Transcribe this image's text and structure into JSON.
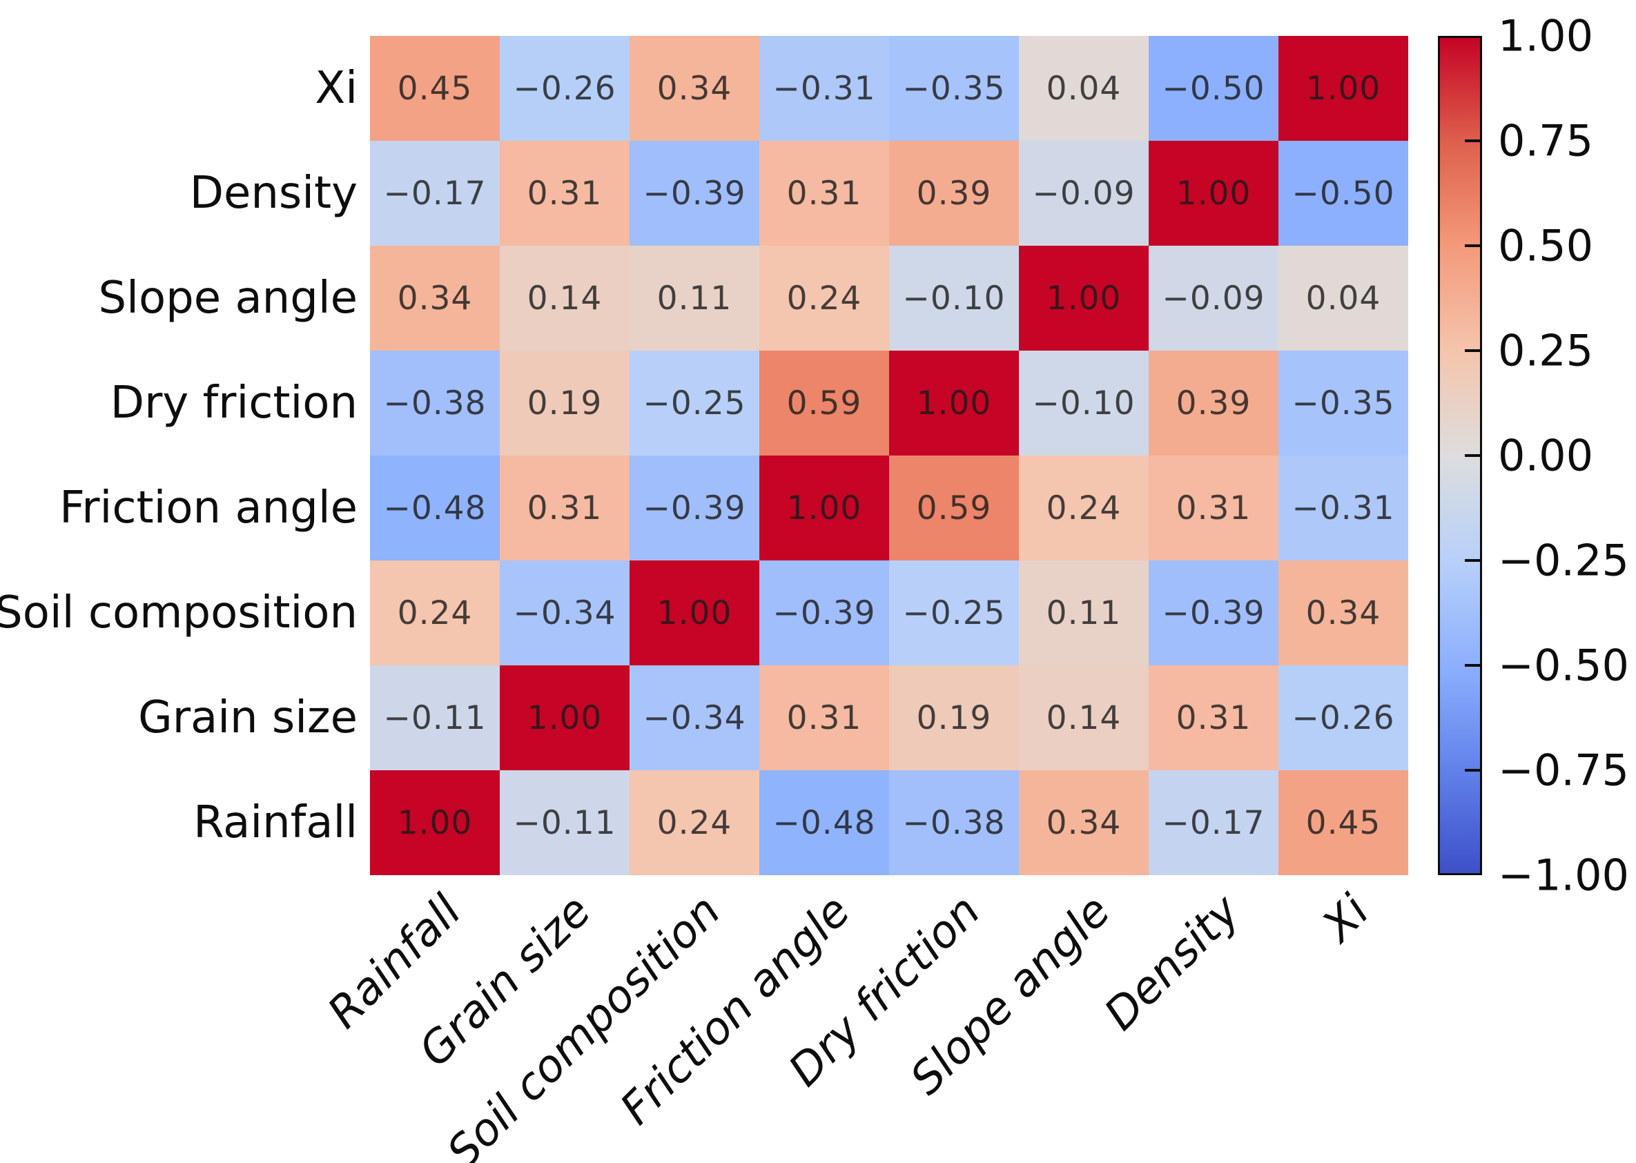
{
  "figure": {
    "background_color": "#ffffff",
    "axis_label_color": "#0d0d0d",
    "cell_value_color": "rgba(25,25,25,0.8)"
  },
  "chart_data": {
    "type": "heatmap",
    "subtype": "correlation-matrix",
    "title": "",
    "x_tick_labels": [
      "Rainfall",
      "Grain size",
      "Soil composition",
      "Friction angle",
      "Dry friction",
      "Slope angle",
      "Density",
      "Xi"
    ],
    "y_tick_labels_top_to_bottom": [
      "Xi",
      "Density",
      "Slope angle",
      "Dry friction",
      "Friction angle",
      "Soil composition",
      "Grain size",
      "Rainfall"
    ],
    "matrix_rows_top_to_bottom": [
      [
        0.45,
        -0.26,
        0.34,
        -0.31,
        -0.35,
        0.04,
        -0.5,
        1.0
      ],
      [
        -0.17,
        0.31,
        -0.39,
        0.31,
        0.39,
        -0.09,
        1.0,
        -0.5
      ],
      [
        0.34,
        0.14,
        0.11,
        0.24,
        -0.1,
        1.0,
        -0.09,
        0.04
      ],
      [
        -0.38,
        0.19,
        -0.25,
        0.59,
        1.0,
        -0.1,
        0.39,
        -0.35
      ],
      [
        -0.48,
        0.31,
        -0.39,
        1.0,
        0.59,
        0.24,
        0.31,
        -0.31
      ],
      [
        0.24,
        -0.34,
        1.0,
        -0.39,
        -0.25,
        0.11,
        -0.39,
        0.34
      ],
      [
        -0.11,
        1.0,
        -0.34,
        0.31,
        0.19,
        0.14,
        0.31,
        -0.26
      ],
      [
        1.0,
        -0.11,
        0.24,
        -0.48,
        -0.38,
        0.34,
        -0.17,
        0.45
      ]
    ],
    "value_decimals": 2,
    "minus_sign": "−",
    "grid_on": false,
    "colorbar": {
      "position": "right",
      "range": [
        -1,
        1
      ],
      "tick_labels": [
        "1.00",
        "0.75",
        "0.50",
        "0.25",
        "0.00",
        "−0.25",
        "−0.50",
        "−0.75",
        "−1.00"
      ],
      "tick_values": [
        1,
        0.75,
        0.5,
        0.25,
        0,
        -0.25,
        -0.5,
        -0.75,
        -1
      ],
      "colormap_name": "coolwarm",
      "colormap_anchors_low_to_high": [
        "#3d50c8",
        "#6282ea",
        "#8db0fe",
        "#b8d0f9",
        "#dddddd",
        "#f5c4ad",
        "#f49a7b",
        "#de604d",
        "#c50426"
      ]
    }
  }
}
